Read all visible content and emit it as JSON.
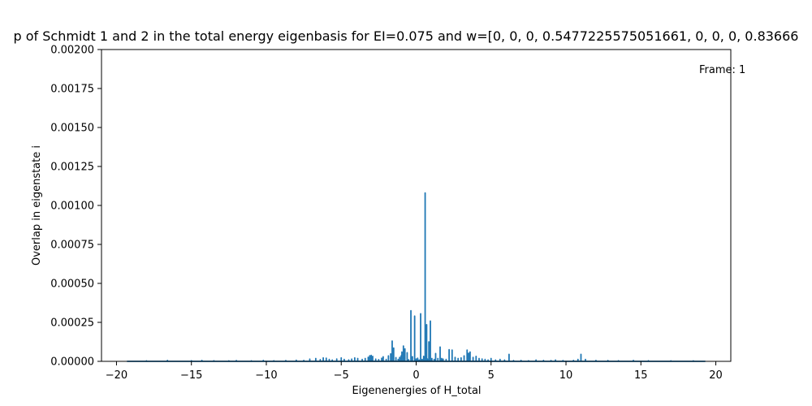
{
  "chart_data": {
    "type": "line",
    "title": "p of Schmidt 1 and 2 in the total energy eigenbasis for EI=0.075 and w=[0, 0, 0, 0.5477225575051661, 0, 0, 0, 0.83666",
    "xlabel": "Eigenenergies of H_total",
    "ylabel": "Overlap in eigenstate i",
    "annotation": "Frame: 1",
    "xlim": [
      -21,
      21
    ],
    "ylim": [
      0,
      0.002
    ],
    "xticks": [
      -20,
      -15,
      -10,
      -5,
      0,
      5,
      10,
      15,
      20
    ],
    "xtick_labels": [
      "−20",
      "−15",
      "−10",
      "−5",
      "0",
      "5",
      "10",
      "15",
      "20"
    ],
    "yticks": [
      0,
      0.00025,
      0.0005,
      0.00075,
      0.001,
      0.00125,
      0.0015,
      0.00175,
      0.002
    ],
    "ytick_labels": [
      "0.00000",
      "0.00025",
      "0.00050",
      "0.00075",
      "0.00100",
      "0.00125",
      "0.00150",
      "0.00175",
      "0.00200"
    ],
    "grid": false,
    "color": "#1f77b4",
    "series": [
      {
        "x": [
          -19.3,
          -18.0,
          -16.6,
          -15.0,
          -14.3,
          -13.5,
          -12.5,
          -12.0,
          -11.0,
          -10.2,
          -9.5,
          -8.7,
          -8.0,
          -7.5,
          -7.1,
          -6.7,
          -6.4,
          -6.2,
          -6.0,
          -5.8,
          -5.6,
          -5.3,
          -5.0,
          -4.8,
          -4.5,
          -4.3,
          -4.1,
          -3.9,
          -3.6,
          -3.4,
          -3.2,
          -3.1,
          -3.0,
          -2.9,
          -2.7,
          -2.5,
          -2.3,
          -2.2,
          -2.0,
          -1.85,
          -1.7,
          -1.6,
          -1.5,
          -1.35,
          -1.2,
          -1.1,
          -1.0,
          -0.95,
          -0.85,
          -0.75,
          -0.6,
          -0.5,
          -0.35,
          -0.25,
          -0.1,
          0.0,
          0.1,
          0.2,
          0.3,
          0.4,
          0.5,
          0.6,
          0.7,
          0.75,
          0.85,
          0.95,
          1.05,
          1.2,
          1.3,
          1.45,
          1.6,
          1.7,
          1.8,
          2.0,
          2.2,
          2.4,
          2.6,
          2.8,
          3.0,
          3.2,
          3.4,
          3.5,
          3.6,
          3.8,
          4.0,
          4.2,
          4.4,
          4.6,
          4.8,
          5.0,
          5.3,
          5.6,
          5.9,
          6.2,
          6.5,
          7.0,
          7.5,
          8.0,
          8.5,
          9.0,
          9.3,
          9.8,
          10.5,
          10.8,
          11.0,
          11.3,
          12.0,
          12.8,
          13.5,
          14.5,
          15.5,
          17.0,
          18.5,
          19.3
        ],
        "y": [
          0.0,
          3e-06,
          6e-06,
          4e-06,
          6e-06,
          4e-06,
          3e-06,
          5e-06,
          3e-06,
          6e-06,
          4e-06,
          5e-06,
          7e-06,
          6e-06,
          1.4e-05,
          1.8e-05,
          1.1e-05,
          2.2e-05,
          2e-05,
          1.2e-05,
          8e-06,
          1.5e-05,
          2.2e-05,
          1.2e-05,
          9e-06,
          1.4e-05,
          2.2e-05,
          1.8e-05,
          1.2e-05,
          1.8e-05,
          2.6e-05,
          3.6e-05,
          3.8e-05,
          3.2e-05,
          1.4e-05,
          1.1e-05,
          2e-05,
          2.9e-05,
          1.2e-05,
          3.5e-05,
          4.8e-05,
          0.00013,
          8.5e-05,
          2.4e-05,
          1.2e-05,
          2.5e-05,
          3.5e-05,
          6e-05,
          9.8e-05,
          8e-05,
          5.5e-05,
          1e-05,
          0.000325,
          3e-05,
          0.00029,
          1.5e-05,
          2e-05,
          8e-06,
          0.000305,
          1.2e-05,
          3.2e-05,
          0.00108,
          0.000235,
          1.5e-05,
          0.000125,
          0.000258,
          1.8e-05,
          1.2e-05,
          5e-05,
          1.8e-05,
          9.2e-05,
          1.8e-05,
          1.4e-05,
          1.2e-05,
          7.5e-05,
          7.2e-05,
          2.5e-05,
          1.8e-05,
          2.2e-05,
          3.5e-05,
          7.2e-05,
          5.2e-05,
          6e-05,
          2.5e-05,
          3.2e-05,
          1.8e-05,
          1.5e-05,
          1.2e-05,
          8e-06,
          1.8e-05,
          8e-06,
          1.2e-05,
          8e-06,
          4.5e-05,
          5e-06,
          6e-06,
          4e-06,
          8e-06,
          6e-06,
          5e-06,
          8e-06,
          5e-06,
          6e-06,
          1.2e-05,
          4.5e-05,
          1.2e-05,
          6e-06,
          5e-06,
          4e-06,
          6e-06,
          4e-06,
          3e-06,
          3e-06,
          0.0
        ]
      }
    ]
  }
}
